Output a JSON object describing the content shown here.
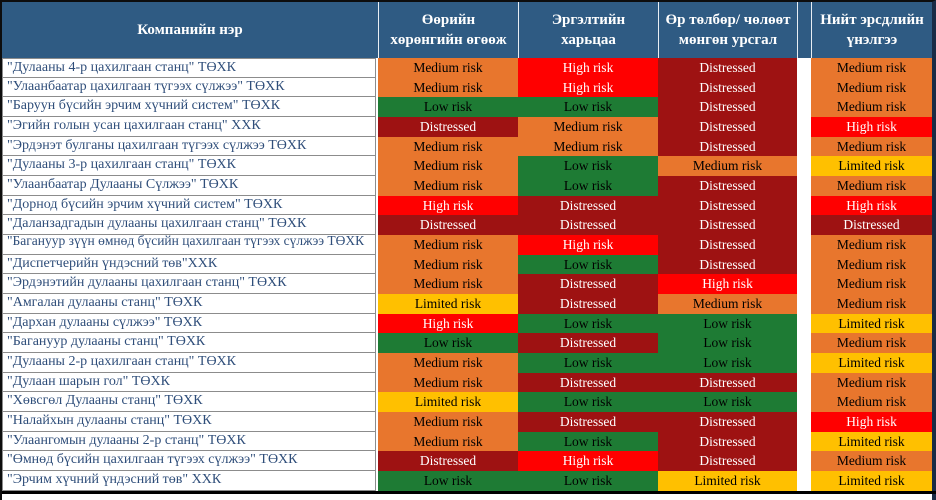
{
  "chart_data": {
    "type": "table",
    "columns": [
      "Компанийн нэр",
      "Өөрийн\nхөрөнгийн өгөөж",
      "Эргэлтийн\nхарьцаа",
      "Өр төлбөр/ чөлөөт\nмөнгөн урсгал",
      "Нийт эрсдлийн\nүнэлгээ"
    ],
    "rows": [
      {
        "name": "\"Дулааны 4-р цахилгаан станц\" ТӨХК",
        "values": [
          "Medium risk",
          "High risk",
          "Distressed",
          "Medium risk"
        ]
      },
      {
        "name": "\"Улаанбаатар цахилгаан түгээх сүлжээ\" ТӨХК",
        "values": [
          "Medium risk",
          "High risk",
          "Distressed",
          "Medium risk"
        ]
      },
      {
        "name": "\"Баруун бүсийн эрчим хүчний систем\" ТӨХК",
        "values": [
          "Low risk",
          "Low risk",
          "Distressed",
          "Medium risk"
        ]
      },
      {
        "name": "\"Эгийн голын усан цахилгаан станц\" ХХК",
        "values": [
          "Distressed",
          "Medium risk",
          "Distressed",
          "High risk"
        ]
      },
      {
        "name": "\"Эрдэнэт булганы цахилгаан түгээх сүлжээ ТӨХК",
        "values": [
          "Medium risk",
          "Medium risk",
          "Distressed",
          "Medium risk"
        ]
      },
      {
        "name": "\"Дулааны 3-р цахилгаан станц\" ТӨХК",
        "values": [
          "Medium risk",
          "Low risk",
          "Medium risk",
          "Limited risk"
        ]
      },
      {
        "name": "\"Улаанбаатар Дулааны Сүлжээ\" ТӨХК",
        "values": [
          "Medium risk",
          "Low risk",
          "Distressed",
          "Medium risk"
        ]
      },
      {
        "name": "\"Дорнод бүсийн эрчим хүчний систем\" ТӨХК",
        "values": [
          "High risk",
          "Distressed",
          "Distressed",
          "High risk"
        ]
      },
      {
        "name": "\"Даланзадгадын дулааны цахилгаан станц\" ТӨХК",
        "values": [
          "Distressed",
          "Distressed",
          "Distressed",
          "Distressed"
        ]
      },
      {
        "name": "\"Багануур зүүн өмнөд бүсийн цахилгаан түгээх сүлжээ ТӨХК",
        "values": [
          "Medium risk",
          "High risk",
          "Distressed",
          "Medium risk"
        ],
        "two_line": true
      },
      {
        "name": "\"Диспетчерийн үндэсний төв\"ХХК",
        "values": [
          "Medium risk",
          "Low risk",
          "Distressed",
          "Medium risk"
        ]
      },
      {
        "name": "\"Эрдэнэтийн дулааны цахилгаан станц\" ТӨХК",
        "values": [
          "Medium risk",
          "Distressed",
          "High risk",
          "Medium risk"
        ]
      },
      {
        "name": "\"Амгалан дулааны станц\" ТӨХК",
        "values": [
          "Limited risk",
          "Distressed",
          "Medium risk",
          "Medium risk"
        ]
      },
      {
        "name": "\"Дархан дулааны сүлжээ\" ТӨХК",
        "values": [
          "High risk",
          "Low risk",
          "Low risk",
          "Limited risk"
        ]
      },
      {
        "name": "\"Багануур дулааны станц\" ТӨХК",
        "values": [
          "Low risk",
          "Distressed",
          "Low risk",
          "Medium risk"
        ]
      },
      {
        "name": "\"Дулааны 2-р цахилгаан станц\" ТӨХК",
        "values": [
          "Medium risk",
          "Low risk",
          "Low risk",
          "Limited risk"
        ]
      },
      {
        "name": "\"Дулаан шарын гол\" ТӨХК",
        "values": [
          "Medium risk",
          "Distressed",
          "Distressed",
          "Medium risk"
        ]
      },
      {
        "name": "\"Хөвсгөл Дулааны станц\" ТӨХК",
        "values": [
          "Limited risk",
          "Low risk",
          "Low risk",
          "Medium risk"
        ]
      },
      {
        "name": "\"Налайхын дулааны станц\" ТӨХК",
        "values": [
          "Medium risk",
          "Distressed",
          "Distressed",
          "High risk"
        ]
      },
      {
        "name": "\"Улаангомын дулааны 2-р станц\" ТӨХК",
        "values": [
          "Medium risk",
          "Low risk",
          "Distressed",
          "Limited risk"
        ]
      },
      {
        "name": "\"Өмнөд бүсийн цахилгаан түгээх сүлжээ\" ТӨХК",
        "values": [
          "Distressed",
          "High risk",
          "Distressed",
          "Medium risk"
        ]
      },
      {
        "name": "\"Эрчим хүчний үндэсний төв\" ХХК",
        "values": [
          "Low risk",
          "Low risk",
          "Limited risk",
          "Limited risk"
        ]
      }
    ]
  },
  "levels": {
    "Medium risk": {
      "bg": "#E8762D",
      "fg": "#000000"
    },
    "High risk": {
      "bg": "#FF0000",
      "fg": "#FFFFFF"
    },
    "Distressed": {
      "bg": "#9E1212",
      "fg": "#FFFFFF"
    },
    "Low risk": {
      "bg": "#1E7B34",
      "fg": "#000000"
    },
    "Limited risk": {
      "bg": "#FFC000",
      "fg": "#000000"
    }
  },
  "colors": {
    "header_bg": "#2F5B83",
    "header_fg": "#FFFFFF",
    "name_fg": "#2F4E7A",
    "right_border": "#1A2B45"
  }
}
